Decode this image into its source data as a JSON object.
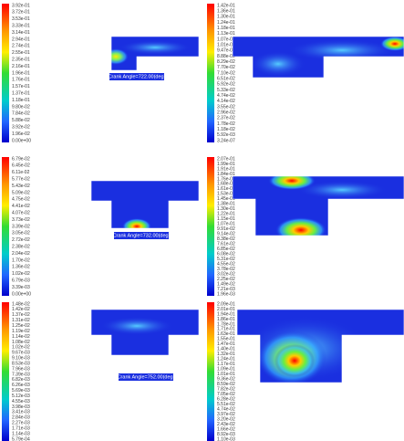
{
  "panels": [
    {
      "labels": [
        "3.92e-01",
        "3.72e-01",
        "3.53e-01",
        "3.33e-01",
        "3.14e-01",
        "2.94e-01",
        "2.74e-01",
        "2.55e-01",
        "2.35e-01",
        "2.16e-01",
        "1.96e-01",
        "1.76e-01",
        "1.57e-01",
        "1.37e-01",
        "1.18e-01",
        "9.80e-02",
        "7.84e-02",
        "5.88e-02",
        "3.92e-02",
        "1.96e-02",
        "0.00e+00"
      ],
      "caption": "Crank Angle=722.00(deg)"
    },
    {
      "labels": [
        "1.42e-01",
        "1.36e-01",
        "1.30e-01",
        "1.24e-01",
        "1.18e-01",
        "1.13e-01",
        "1.07e-01",
        "1.01e-01",
        "9.47e-02",
        "8.88e-02",
        "8.29e-02",
        "7.70e-02",
        "7.10e-02",
        "6.51e-02",
        "5.92e-02",
        "5.33e-02",
        "4.74e-02",
        "4.14e-02",
        "3.55e-02",
        "2.96e-02",
        "2.37e-02",
        "1.78e-02",
        "1.18e-02",
        "5.92e-03",
        "3.24e-07"
      ]
    },
    {
      "labels": [
        "6.79e-02",
        "6.45e-02",
        "6.11e-02",
        "5.77e-02",
        "5.43e-02",
        "5.09e-02",
        "4.75e-02",
        "4.41e-02",
        "4.07e-02",
        "3.73e-02",
        "3.39e-02",
        "3.05e-02",
        "2.72e-02",
        "2.38e-02",
        "2.04e-02",
        "1.70e-02",
        "1.36e-02",
        "1.02e-02",
        "6.79e-03",
        "3.39e-03",
        "0.00e+00"
      ],
      "caption": "Crank Angle=732.00(deg)"
    },
    {
      "labels": [
        "2.07e-01",
        "1.99e-01",
        "1.91e-01",
        "1.84e-01",
        "1.76e-01",
        "1.68e-01",
        "1.61e-01",
        "1.53e-01",
        "1.45e-01",
        "1.38e-01",
        "1.30e-01",
        "1.22e-01",
        "1.15e-01",
        "1.07e-01",
        "9.91e-02",
        "9.14e-02",
        "8.38e-02",
        "7.61e-02",
        "6.85e-02",
        "6.08e-02",
        "5.31e-02",
        "4.55e-02",
        "3.78e-02",
        "3.02e-02",
        "2.25e-02",
        "1.49e-02",
        "7.21e-03",
        "1.96e-03"
      ]
    },
    {
      "labels": [
        "1.48e-02",
        "1.42e-02",
        "1.37e-02",
        "1.31e-02",
        "1.25e-02",
        "1.19e-02",
        "1.14e-02",
        "1.08e-02",
        "1.02e-02",
        "9.67e-03",
        "9.10e-03",
        "8.53e-03",
        "7.96e-03",
        "7.39e-03",
        "6.82e-03",
        "6.26e-03",
        "5.69e-03",
        "5.12e-03",
        "4.55e-03",
        "3.98e-03",
        "3.41e-03",
        "2.84e-03",
        "2.27e-03",
        "1.71e-03",
        "1.14e-03",
        "5.79e-04"
      ],
      "caption": "Crank Angle=752.00(deg)"
    },
    {
      "labels": [
        "2.09e-01",
        "2.01e-01",
        "1.94e-01",
        "1.86e-01",
        "1.78e-01",
        "1.71e-01",
        "1.63e-01",
        "1.55e-01",
        "1.47e-01",
        "1.40e-01",
        "1.32e-01",
        "1.24e-01",
        "1.17e-01",
        "1.09e-01",
        "1.01e-01",
        "9.36e-02",
        "8.59e-02",
        "7.82e-02",
        "7.05e-02",
        "6.28e-02",
        "5.51e-02",
        "4.74e-02",
        "3.97e-02",
        "3.20e-02",
        "2.43e-02",
        "1.66e-02",
        "8.92e-03",
        "1.10e-03"
      ]
    }
  ]
}
